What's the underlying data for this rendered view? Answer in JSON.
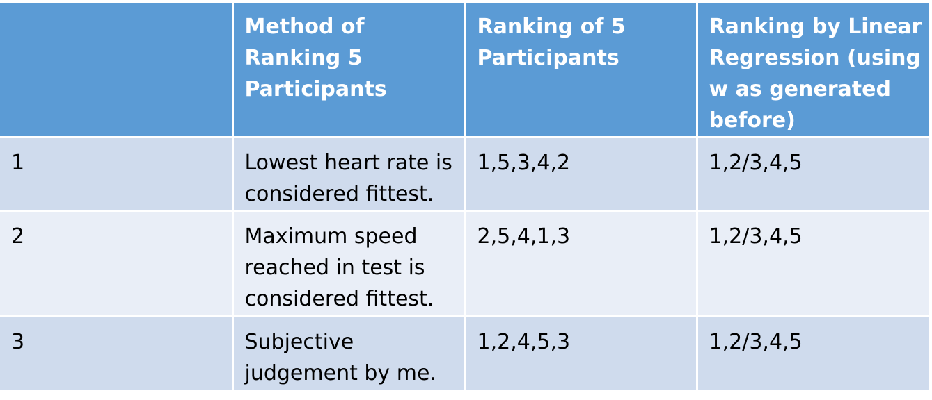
{
  "table": {
    "headers": [
      "",
      "Method of Ranking 5 Participants",
      "Ranking of 5 Participants",
      "Ranking by Linear Regression (using w as generated before)"
    ],
    "rows": [
      [
        "1",
        "Lowest heart rate is considered fittest.",
        "1,5,3,4,2",
        "1,2/3,4,5"
      ],
      [
        "2",
        "Maximum speed reached in test is considered fittest.",
        "2,5,4,1,3",
        "1,2/3,4,5"
      ],
      [
        "3",
        "Subjective judgement by me.",
        "1,2,4,5,3",
        "1,2/3,4,5"
      ]
    ]
  },
  "colors": {
    "header_bg": "#5b9bd5",
    "row_dark_bg": "#cfdbed",
    "row_light_bg": "#e9eef7",
    "header_text": "#ffffff",
    "body_text": "#000000"
  }
}
